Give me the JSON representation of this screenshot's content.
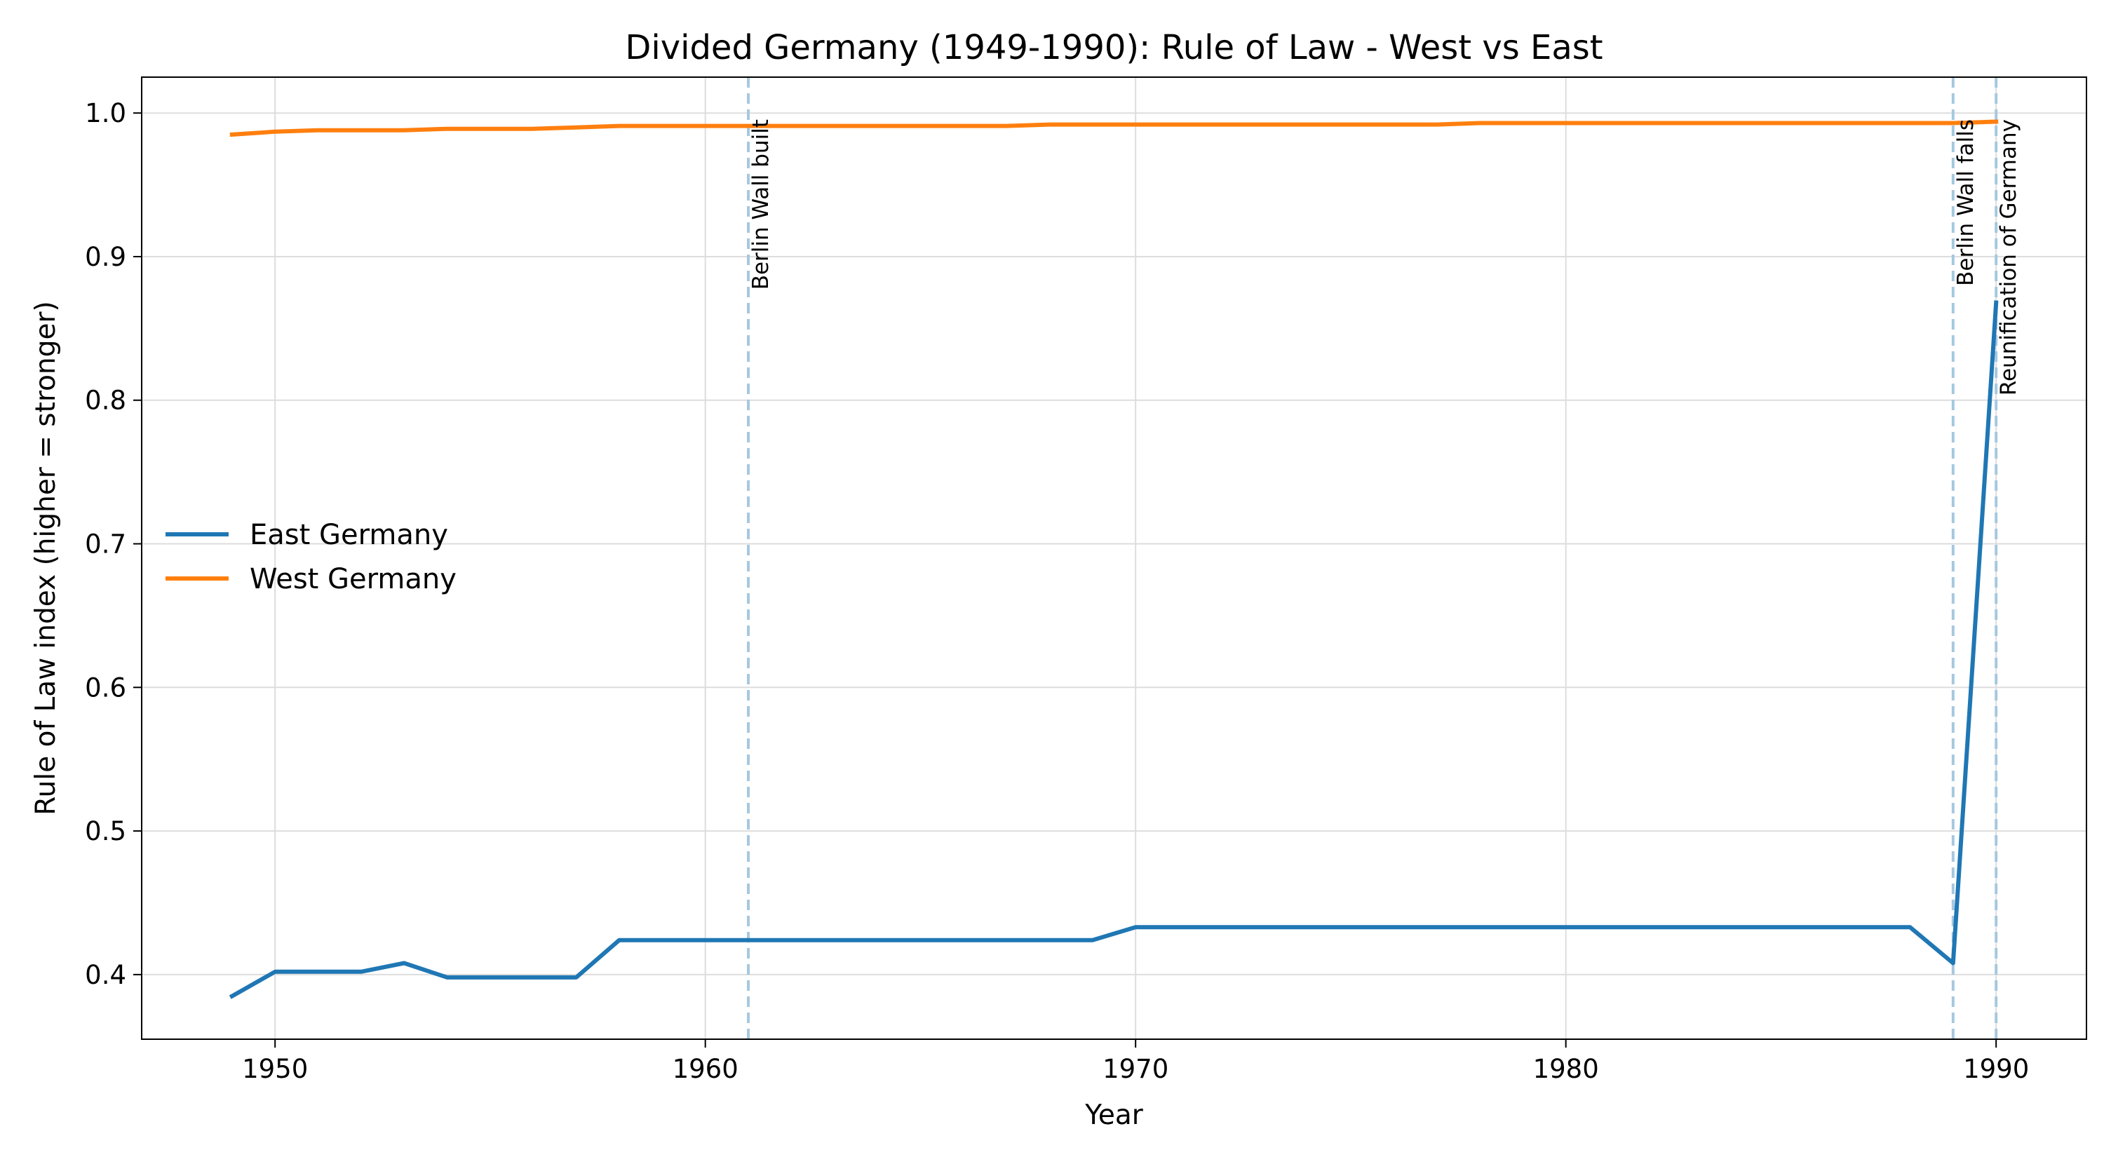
{
  "chart_data": {
    "type": "line",
    "title": "Divided Germany (1949-1990): Rule of Law - West vs East",
    "xlabel": "Year",
    "ylabel": "Rule of Law index (higher = stronger)",
    "xlim": [
      1946.9,
      1992.1
    ],
    "ylim": [
      0.355,
      1.025
    ],
    "xticks": [
      1950,
      1960,
      1970,
      1980,
      1990
    ],
    "yticks": [
      0.4,
      0.5,
      0.6,
      0.7,
      0.8,
      0.9,
      1.0
    ],
    "ytick_labels": [
      "0.4",
      "0.5",
      "0.6",
      "0.7",
      "0.8",
      "0.9",
      "1.0"
    ],
    "grid": true,
    "legend_position": "center-left",
    "series": [
      {
        "name": "East Germany",
        "color": "#1f77b4",
        "x": [
          1949,
          1950,
          1951,
          1952,
          1953,
          1954,
          1955,
          1956,
          1957,
          1958,
          1959,
          1960,
          1961,
          1962,
          1963,
          1964,
          1965,
          1966,
          1967,
          1968,
          1969,
          1970,
          1971,
          1972,
          1973,
          1974,
          1975,
          1976,
          1977,
          1978,
          1979,
          1980,
          1981,
          1982,
          1983,
          1984,
          1985,
          1986,
          1987,
          1988,
          1989,
          1990
        ],
        "y": [
          0.385,
          0.402,
          0.402,
          0.402,
          0.408,
          0.398,
          0.398,
          0.398,
          0.398,
          0.424,
          0.424,
          0.424,
          0.424,
          0.424,
          0.424,
          0.424,
          0.424,
          0.424,
          0.424,
          0.424,
          0.424,
          0.433,
          0.433,
          0.433,
          0.433,
          0.433,
          0.433,
          0.433,
          0.433,
          0.433,
          0.433,
          0.433,
          0.433,
          0.433,
          0.433,
          0.433,
          0.433,
          0.433,
          0.433,
          0.433,
          0.408,
          0.868
        ]
      },
      {
        "name": "West Germany",
        "color": "#ff7f0e",
        "x": [
          1949,
          1950,
          1951,
          1952,
          1953,
          1954,
          1955,
          1956,
          1957,
          1958,
          1959,
          1960,
          1961,
          1962,
          1963,
          1964,
          1965,
          1966,
          1967,
          1968,
          1969,
          1970,
          1971,
          1972,
          1973,
          1974,
          1975,
          1976,
          1977,
          1978,
          1979,
          1980,
          1981,
          1982,
          1983,
          1984,
          1985,
          1986,
          1987,
          1988,
          1989,
          1990
        ],
        "y": [
          0.985,
          0.987,
          0.988,
          0.988,
          0.988,
          0.989,
          0.989,
          0.989,
          0.99,
          0.991,
          0.991,
          0.991,
          0.991,
          0.991,
          0.991,
          0.991,
          0.991,
          0.991,
          0.991,
          0.992,
          0.992,
          0.992,
          0.992,
          0.992,
          0.992,
          0.992,
          0.992,
          0.992,
          0.992,
          0.993,
          0.993,
          0.993,
          0.993,
          0.993,
          0.993,
          0.993,
          0.993,
          0.993,
          0.993,
          0.993,
          0.993,
          0.994
        ]
      }
    ],
    "annotations": [
      {
        "x": 1961,
        "label": "Berlin Wall built",
        "color": "#a6c8e0"
      },
      {
        "x": 1989,
        "label": "Berlin Wall falls",
        "color": "#a6c8e0"
      },
      {
        "x": 1990,
        "label": "Reunification of Germany",
        "color": "#a6c8e0"
      }
    ]
  }
}
